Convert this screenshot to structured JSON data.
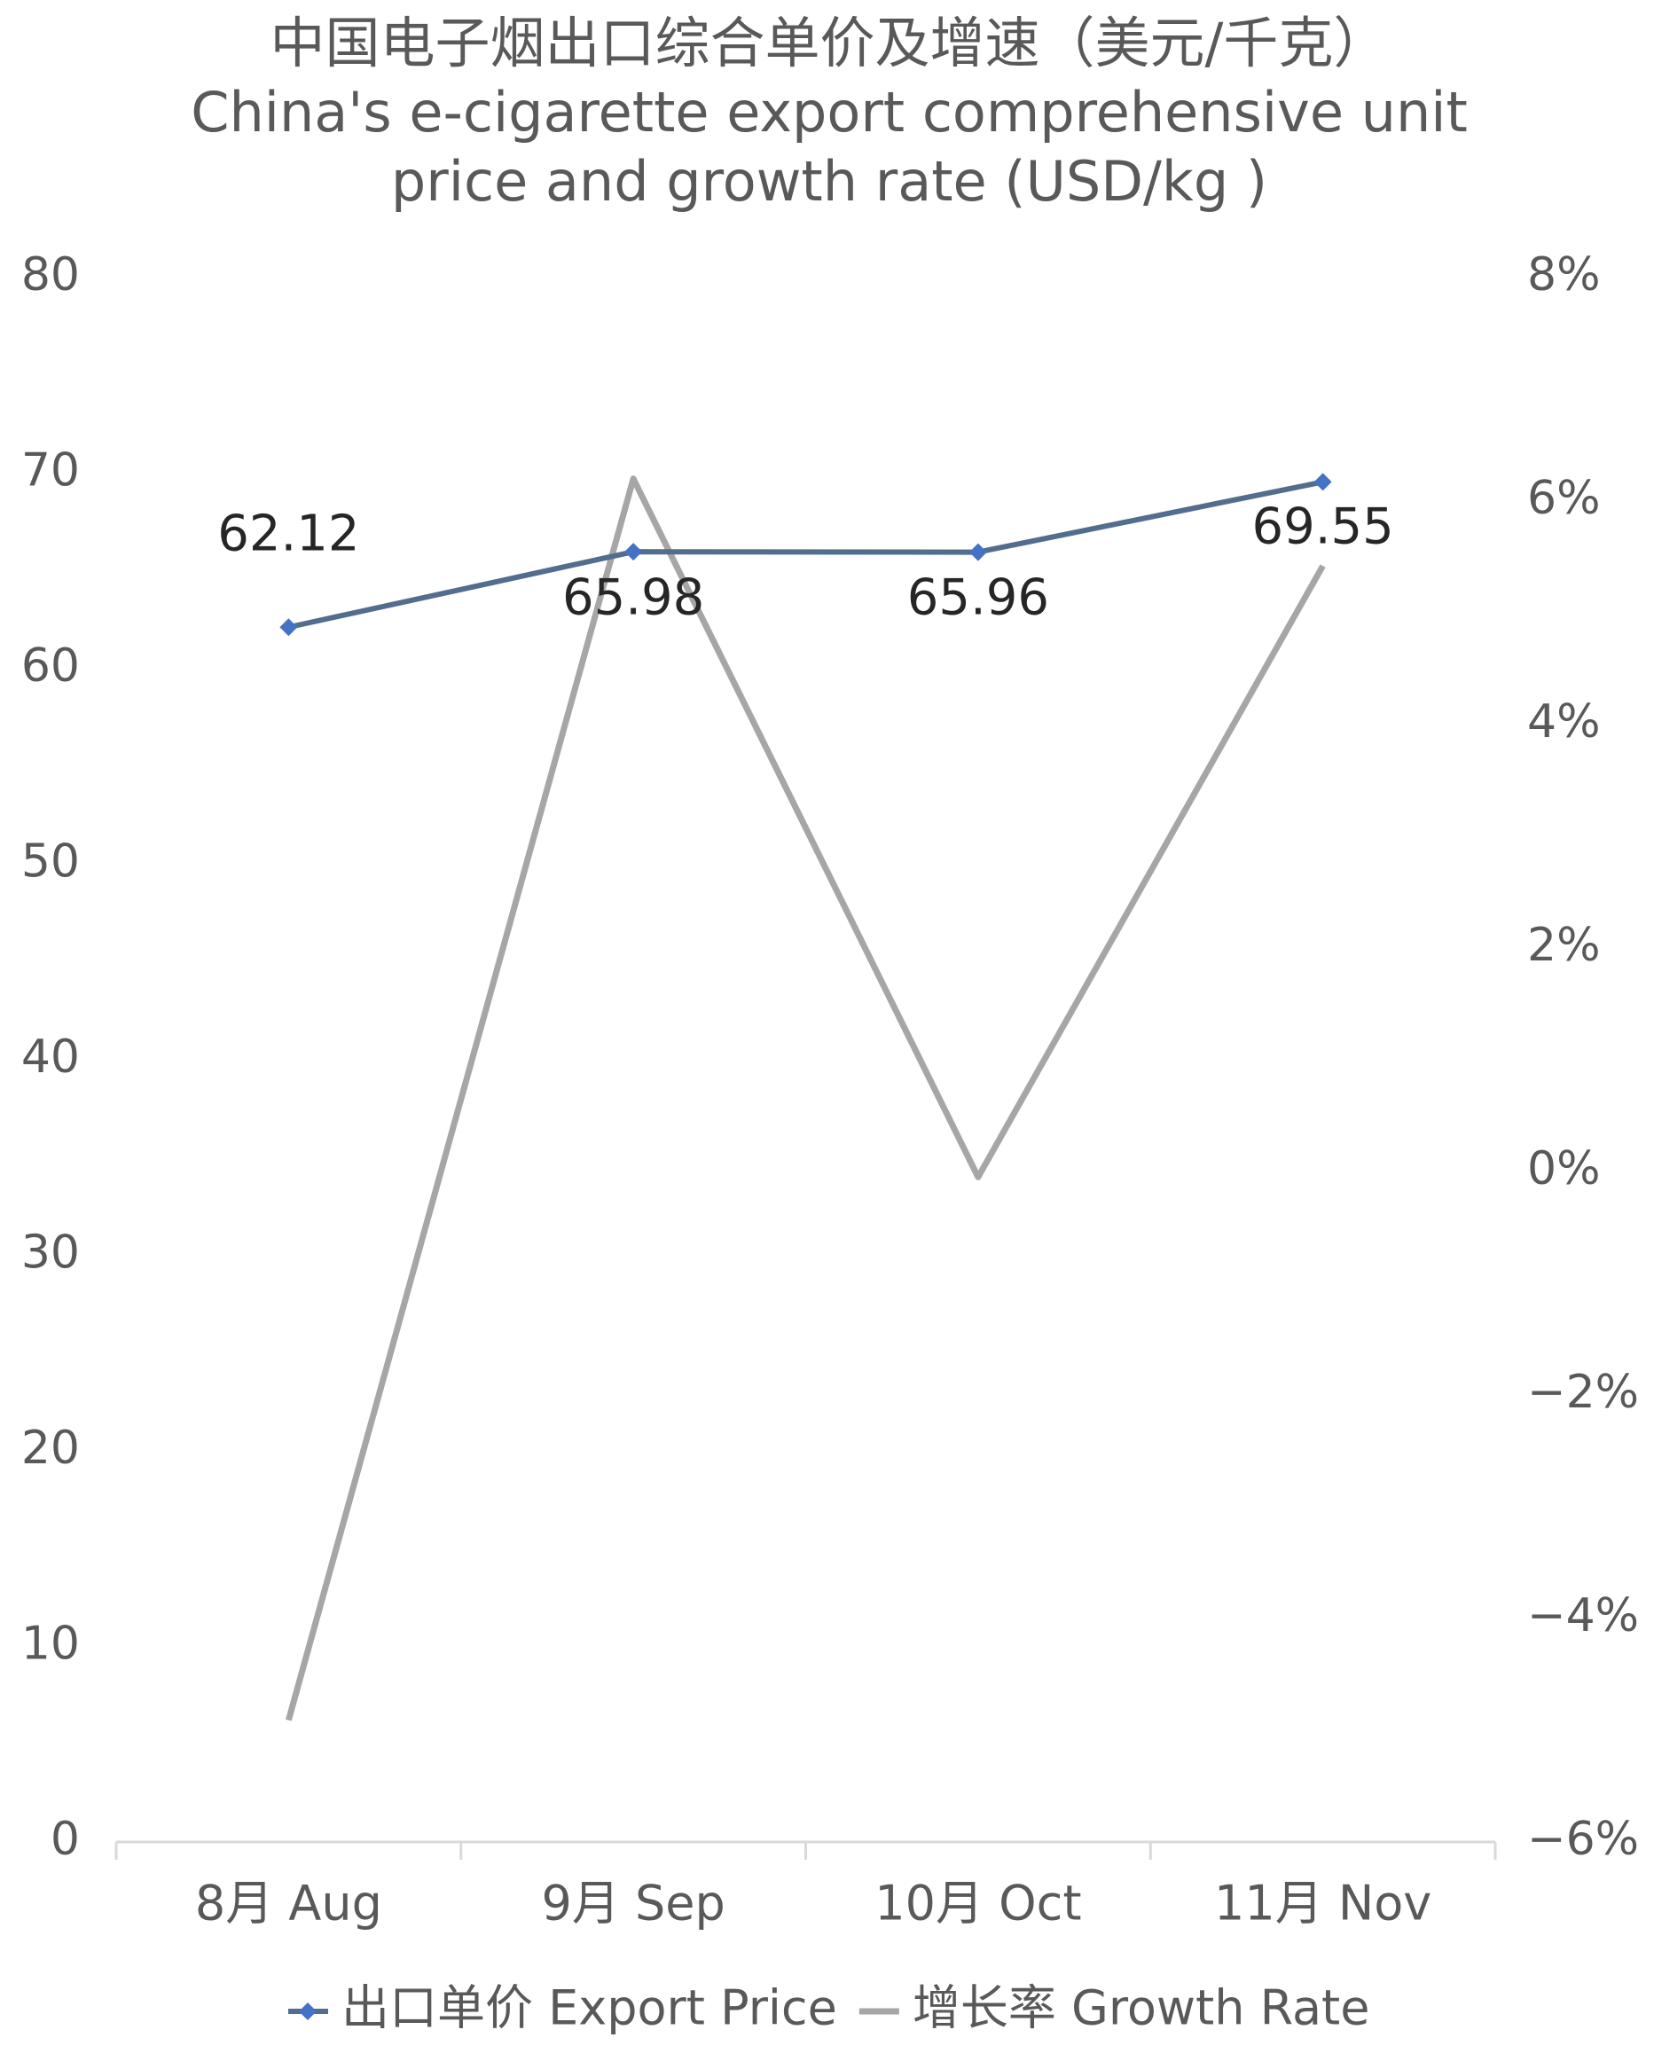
{
  "chart_data": {
    "type": "line",
    "title": "中国电子烟出口综合单价及增速（美元/千克）",
    "subtitle": "China's e-cigarette export comprehensive unit price and growth rate (USD/kg )",
    "categories": [
      "8月 Aug",
      "9月 Sep",
      "10月 Oct",
      "11月 Nov"
    ],
    "series": [
      {
        "name": "出口单价 Export Price",
        "color": "#536d8f",
        "marker_color": "#4472c4",
        "values": [
          62.12,
          65.98,
          65.96,
          69.55
        ]
      },
      {
        "name": "增长率 Growth Rate",
        "color": "#a6a6a6",
        "axis": "y2",
        "values": [
          -4.91,
          6.2,
          -0.05,
          5.42
        ]
      }
    ],
    "ylim": [
      0,
      80
    ],
    "yticks": [
      0,
      10,
      20,
      30,
      40,
      50,
      60,
      70,
      80
    ],
    "y2lim": [
      -6,
      8
    ],
    "y2ticks": [
      {
        "value": -6,
        "label": "−6%"
      },
      {
        "value": -4,
        "label": "−4%"
      },
      {
        "value": -2,
        "label": "−2%"
      },
      {
        "value": 0,
        "label": "0%"
      },
      {
        "value": 2,
        "label": "2%"
      },
      {
        "value": 4,
        "label": "4%"
      },
      {
        "value": 6,
        "label": "6%"
      },
      {
        "value": 8,
        "label": "8%"
      }
    ],
    "grid": false,
    "legend": "bottom"
  }
}
